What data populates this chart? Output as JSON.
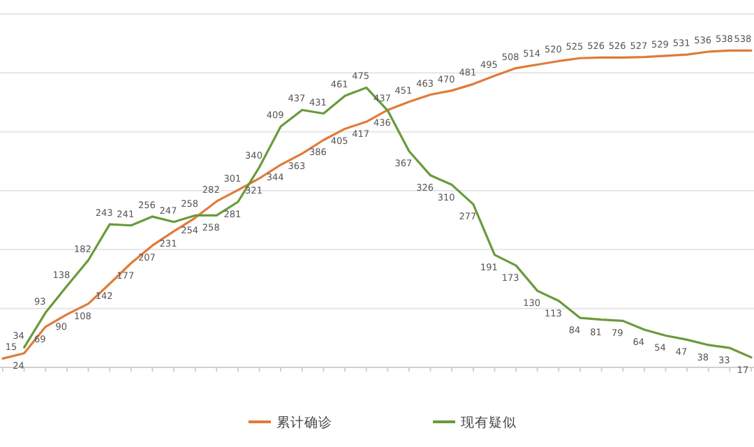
{
  "chart_data": {
    "type": "line",
    "categories": [
      null,
      null,
      null,
      null,
      null,
      null,
      null,
      null,
      null,
      null,
      null,
      null,
      null,
      null,
      null,
      null,
      null,
      null,
      null,
      null,
      null,
      null,
      null,
      null,
      null,
      null,
      null,
      null,
      null,
      null,
      null,
      null,
      null,
      null,
      null,
      null
    ],
    "series": [
      {
        "name": "累计确诊",
        "color": "#e07b39",
        "values": [
          15,
          24,
          69,
          90,
          108,
          142,
          177,
          207,
          231,
          254,
          282,
          301,
          321,
          344,
          363,
          386,
          405,
          417,
          437,
          451,
          463,
          470,
          481,
          495,
          508,
          514,
          520,
          525,
          526,
          526,
          527,
          529,
          531,
          536,
          538,
          538
        ]
      },
      {
        "name": "现有疑似",
        "color": "#6a9a3a",
        "values": [
          null,
          34,
          93,
          138,
          182,
          243,
          241,
          256,
          247,
          258,
          258,
          281,
          340,
          409,
          437,
          431,
          461,
          475,
          436,
          367,
          326,
          310,
          277,
          191,
          173,
          130,
          113,
          84,
          81,
          79,
          64,
          54,
          47,
          38,
          33,
          17
        ]
      }
    ],
    "ylim": [
      0,
      600
    ],
    "yticks": [
      {
        "value": 100,
        "label": null
      },
      {
        "value": 200,
        "label": null
      },
      {
        "value": 300,
        "label": null
      },
      {
        "value": 400,
        "label": null
      },
      {
        "value": 500,
        "label": null
      },
      {
        "value": 600,
        "label": null
      }
    ],
    "grid": "y",
    "data_labels": true,
    "legend": "bottom",
    "marker": "none",
    "line_style": "solid"
  }
}
